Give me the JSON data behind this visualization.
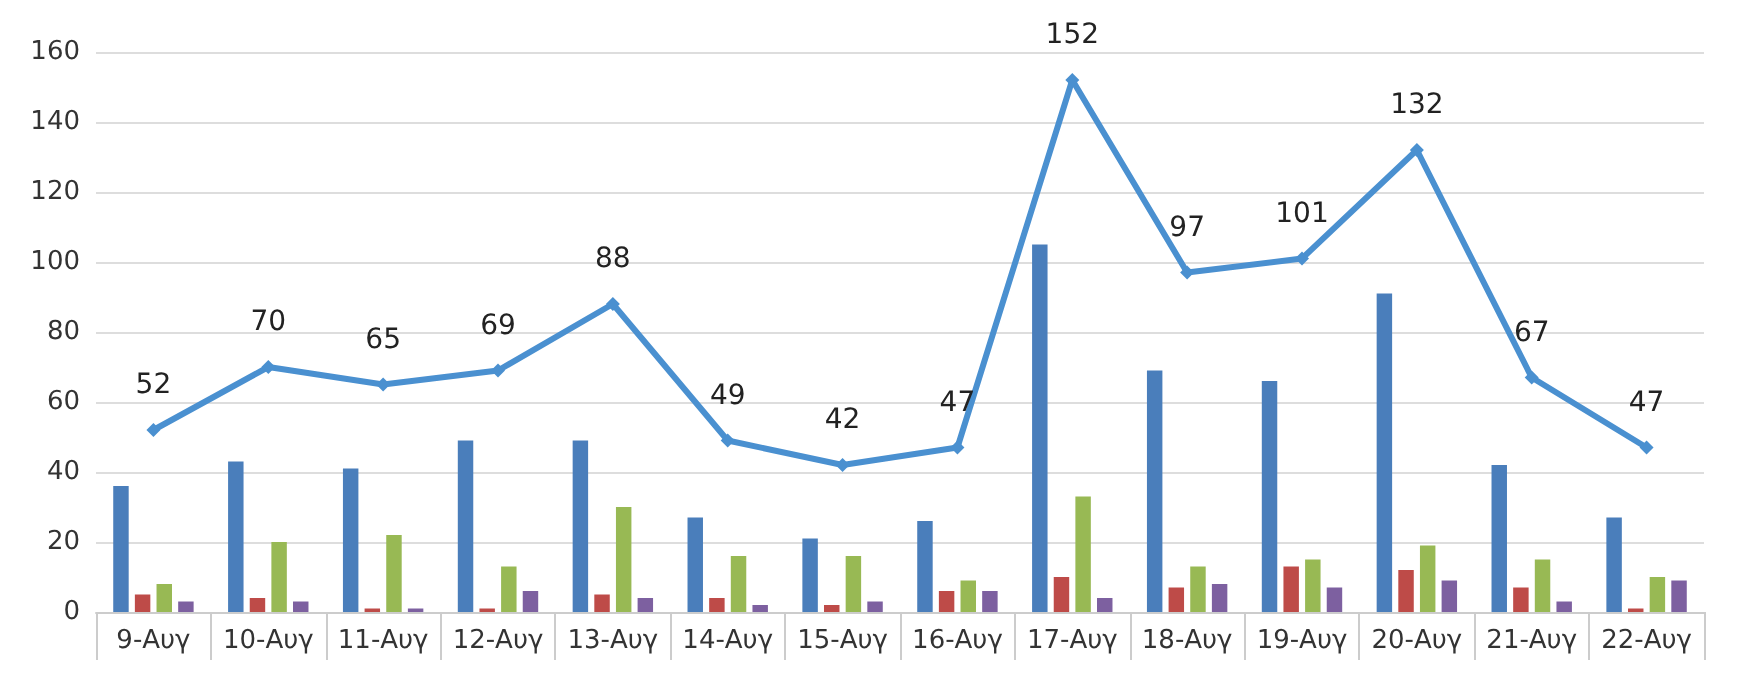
{
  "chart_data": {
    "type": "bar",
    "categories": [
      "9-Αυγ",
      "10-Αυγ",
      "11-Αυγ",
      "12-Αυγ",
      "13-Αυγ",
      "14-Αυγ",
      "15-Αυγ",
      "16-Αυγ",
      "17-Αυγ",
      "18-Αυγ",
      "19-Αυγ",
      "20-Αυγ",
      "21-Αυγ",
      "22-Αυγ"
    ],
    "series": [
      {
        "color": "#4a7ebb",
        "values": [
          36,
          43,
          41,
          49,
          49,
          27,
          21,
          26,
          105,
          69,
          66,
          91,
          42,
          27
        ]
      },
      {
        "color": "#be4b48",
        "values": [
          5,
          4,
          1,
          1,
          5,
          4,
          2,
          6,
          10,
          7,
          13,
          12,
          7,
          1
        ]
      },
      {
        "color": "#98b954",
        "values": [
          8,
          20,
          22,
          13,
          30,
          16,
          16,
          9,
          33,
          13,
          15,
          19,
          15,
          10
        ]
      },
      {
        "color": "#7d60a0",
        "values": [
          3,
          3,
          1,
          6,
          4,
          2,
          3,
          6,
          4,
          8,
          7,
          9,
          3,
          9
        ]
      },
      {
        "type": "line",
        "color": "#4a90d0",
        "marker": "diamond",
        "values": [
          52,
          70,
          65,
          69,
          88,
          49,
          42,
          47,
          152,
          97,
          101,
          132,
          67,
          47
        ],
        "value_labels": [
          "52",
          "70",
          "65",
          "69",
          "88",
          "49",
          "42",
          "47",
          "152",
          "97",
          "101",
          "132",
          "67",
          "47"
        ]
      }
    ],
    "ylim": [
      0,
      160
    ],
    "yticks": [
      0,
      20,
      40,
      60,
      80,
      100,
      120,
      140,
      160
    ],
    "grid": "y"
  }
}
